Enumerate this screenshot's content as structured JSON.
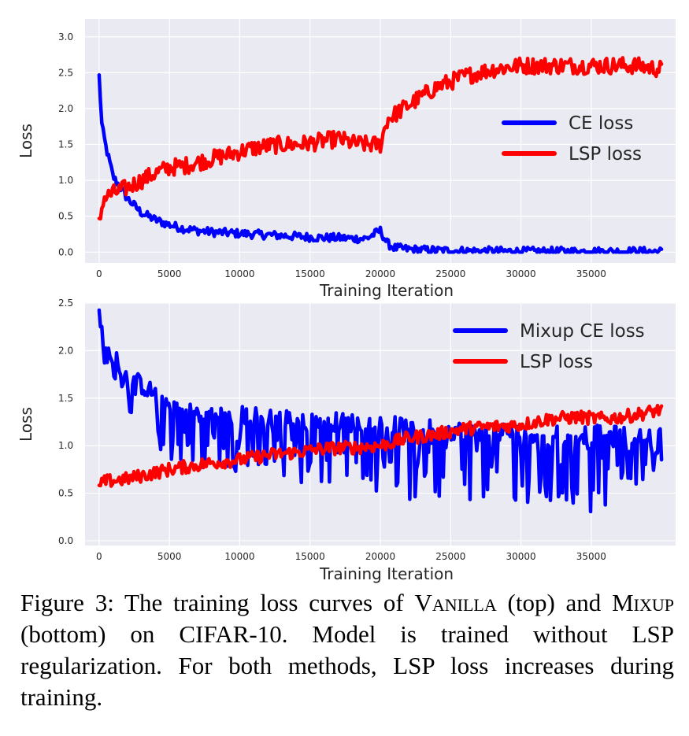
{
  "chart_data": [
    {
      "type": "line",
      "xlabel": "Training Iteration",
      "ylabel": "Loss",
      "xlim": [
        -1000,
        41000
      ],
      "ylim": [
        -0.15,
        3.25
      ],
      "xticks": [
        0,
        5000,
        10000,
        15000,
        20000,
        25000,
        30000,
        35000
      ],
      "yticks": [
        0.0,
        0.5,
        1.0,
        1.5,
        2.0,
        2.5,
        3.0
      ],
      "ytick_labels": [
        "0.0",
        "0.5",
        "1.0",
        "1.5",
        "2.0",
        "2.5",
        "3.0"
      ],
      "grid": true,
      "legend_position": "right",
      "series": [
        {
          "name": "CE loss",
          "color": "#0000ff",
          "x": [
            0,
            200,
            500,
            1000,
            1500,
            2000,
            2500,
            3000,
            4000,
            5000,
            6000,
            7000,
            8000,
            9000,
            10000,
            11000,
            12000,
            13000,
            14000,
            15000,
            16000,
            17000,
            18000,
            19000,
            20000,
            20500,
            21000,
            22000,
            23000,
            25000,
            30000,
            35000,
            40000
          ],
          "y": [
            2.45,
            1.75,
            1.45,
            1.05,
            0.9,
            0.75,
            0.65,
            0.55,
            0.45,
            0.38,
            0.33,
            0.3,
            0.28,
            0.27,
            0.26,
            0.25,
            0.24,
            0.23,
            0.22,
            0.21,
            0.2,
            0.2,
            0.19,
            0.19,
            0.3,
            0.12,
            0.06,
            0.04,
            0.03,
            0.02,
            0.01,
            0.01,
            0.01
          ],
          "noise": 0.06
        },
        {
          "name": "LSP loss",
          "color": "#ff0000",
          "x": [
            0,
            300,
            1000,
            2000,
            3000,
            4000,
            5000,
            6000,
            7000,
            8000,
            9000,
            10000,
            11000,
            12000,
            13000,
            14000,
            15000,
            16000,
            17000,
            18000,
            19000,
            20000,
            20500,
            22000,
            24000,
            26000,
            28000,
            30000,
            32000,
            35000,
            38000,
            40000
          ],
          "y": [
            0.38,
            0.75,
            0.82,
            0.9,
            1.0,
            1.1,
            1.18,
            1.2,
            1.25,
            1.3,
            1.35,
            1.4,
            1.45,
            1.48,
            1.5,
            1.5,
            1.52,
            1.55,
            1.58,
            1.52,
            1.5,
            1.5,
            1.85,
            2.05,
            2.3,
            2.45,
            2.55,
            2.6,
            2.6,
            2.6,
            2.6,
            2.55
          ],
          "noise": 0.12
        }
      ]
    },
    {
      "type": "line",
      "xlabel": "Training Iteration",
      "ylabel": "Loss",
      "xlim": [
        -1000,
        41000
      ],
      "ylim": [
        -0.05,
        2.5
      ],
      "xticks": [
        0,
        5000,
        10000,
        15000,
        20000,
        25000,
        30000,
        35000
      ],
      "yticks": [
        0.0,
        0.5,
        1.0,
        1.5,
        2.0,
        2.5
      ],
      "ytick_labels": [
        "0.0",
        "0.5",
        "1.0",
        "1.5",
        "2.0",
        "2.5"
      ],
      "grid": true,
      "legend_position": "top-right",
      "series": [
        {
          "name": "Mixup CE loss",
          "color": "#0000ff",
          "x": [
            0,
            300,
            1000,
            2000,
            3000,
            4000,
            5000,
            7000,
            10000,
            13000,
            16000,
            20000,
            25000,
            30000,
            35000,
            40000
          ],
          "y": [
            2.42,
            1.95,
            1.9,
            1.7,
            1.6,
            1.5,
            1.4,
            1.3,
            1.28,
            1.25,
            1.22,
            1.18,
            1.12,
            1.1,
            1.08,
            1.05
          ],
          "noise_down": [
            0.15,
            0.1,
            0.2,
            0.35,
            0.45,
            0.5,
            0.55,
            0.55,
            0.6,
            0.65,
            0.65,
            0.7,
            0.75,
            0.75,
            0.8,
            0.3
          ],
          "noise_up": 0.2
        },
        {
          "name": "LSP loss",
          "color": "#ff0000",
          "x": [
            0,
            300,
            2000,
            5000,
            8000,
            10000,
            12000,
            14000,
            16000,
            18000,
            20000,
            22000,
            24000,
            26000,
            28000,
            30000,
            32000,
            34000,
            36000,
            38000,
            40000
          ],
          "y": [
            0.55,
            0.62,
            0.65,
            0.75,
            0.82,
            0.85,
            0.9,
            0.93,
            0.97,
            0.98,
            1.0,
            1.08,
            1.12,
            1.18,
            1.2,
            1.22,
            1.28,
            1.3,
            1.28,
            1.32,
            1.38
          ],
          "noise": 0.07
        }
      ]
    }
  ],
  "caption": {
    "part1": "Figure 3: The training loss curves of ",
    "vanilla": "Vanilla",
    "part2": " (top) and ",
    "mixup": "Mixup",
    "part3": " (bottom) on CIFAR-10. Model is trained without LSP regularization. For both methods, LSP loss increases during training."
  }
}
